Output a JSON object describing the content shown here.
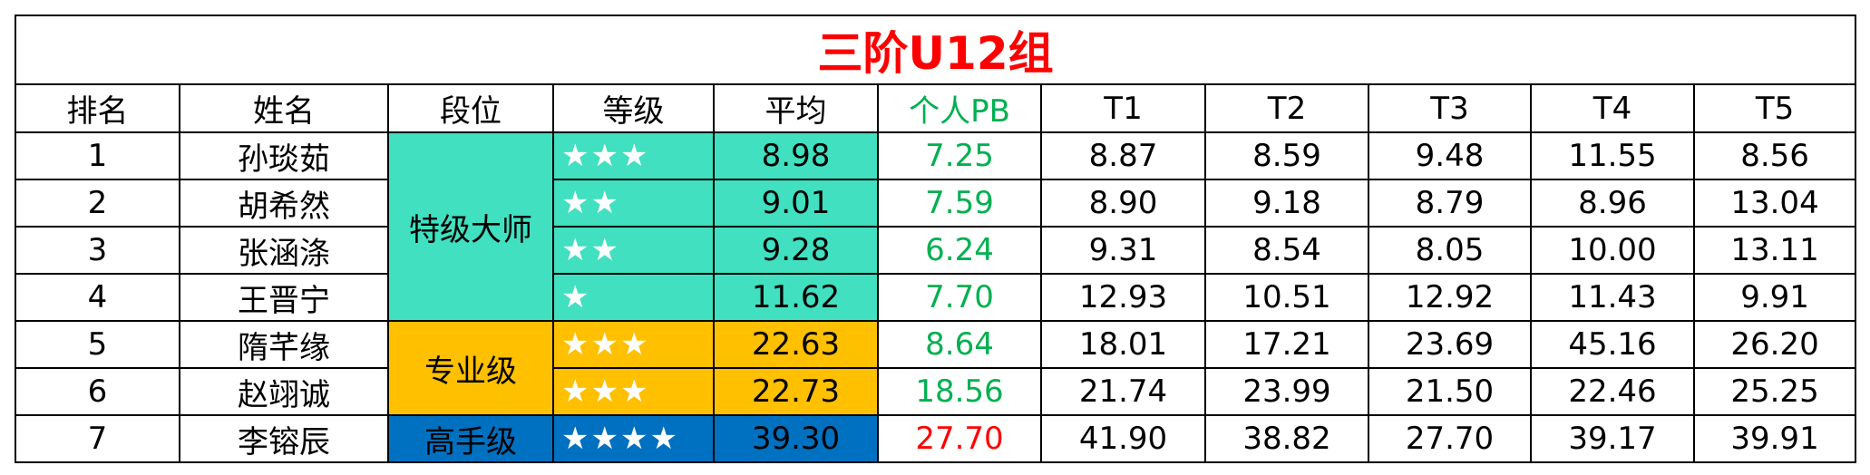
{
  "title": "三阶U12组",
  "table": {
    "header": [
      "排名",
      "姓名",
      "段位",
      "等级",
      "平均",
      "个人PB",
      "T1",
      "T2",
      "T3",
      "T4",
      "T5"
    ],
    "rows": [
      [
        "1",
        "孙琰茹",
        "特级大师",
        "★★★",
        "8.98",
        "7.25",
        "8.87",
        "8.59",
        "9.48",
        "11.55",
        "8.56"
      ],
      [
        "2",
        "胡希然",
        "特级大师",
        "★★",
        "9.01",
        "7.59",
        "8.90",
        "9.18",
        "8.79",
        "8.96",
        "13.04"
      ],
      [
        "3",
        "张涵涤",
        "特级大师",
        "★★",
        "9.28",
        "6.24",
        "9.31",
        "8.54",
        "8.05",
        "10.00",
        "13.11"
      ],
      [
        "4",
        "王晋宁",
        "特级大师",
        "★",
        "11.62",
        "7.70",
        "12.93",
        "10.51",
        "12.92",
        "11.43",
        "9.91"
      ],
      [
        "5",
        "隋芊缘",
        "专业级",
        "★★★",
        "22.63",
        "8.64",
        "18.01",
        "17.21",
        "23.69",
        "45.16",
        "26.20"
      ],
      [
        "6",
        "赵翊诚",
        "专业级",
        "★★★",
        "22.73",
        "18.56",
        "21.74",
        "23.99",
        "21.50",
        "22.46",
        "25.25"
      ],
      [
        "7",
        "李镕辰",
        "高手级",
        "★★★★",
        "39.30",
        "27.70",
        "41.90",
        "38.82",
        "27.70",
        "39.17",
        "39.91"
      ]
    ],
    "pb_colors": [
      "#00b050",
      "#00b050",
      "#00b050",
      "#00b050",
      "#00b050",
      "#00b050",
      "#ff0000"
    ]
  }
}
